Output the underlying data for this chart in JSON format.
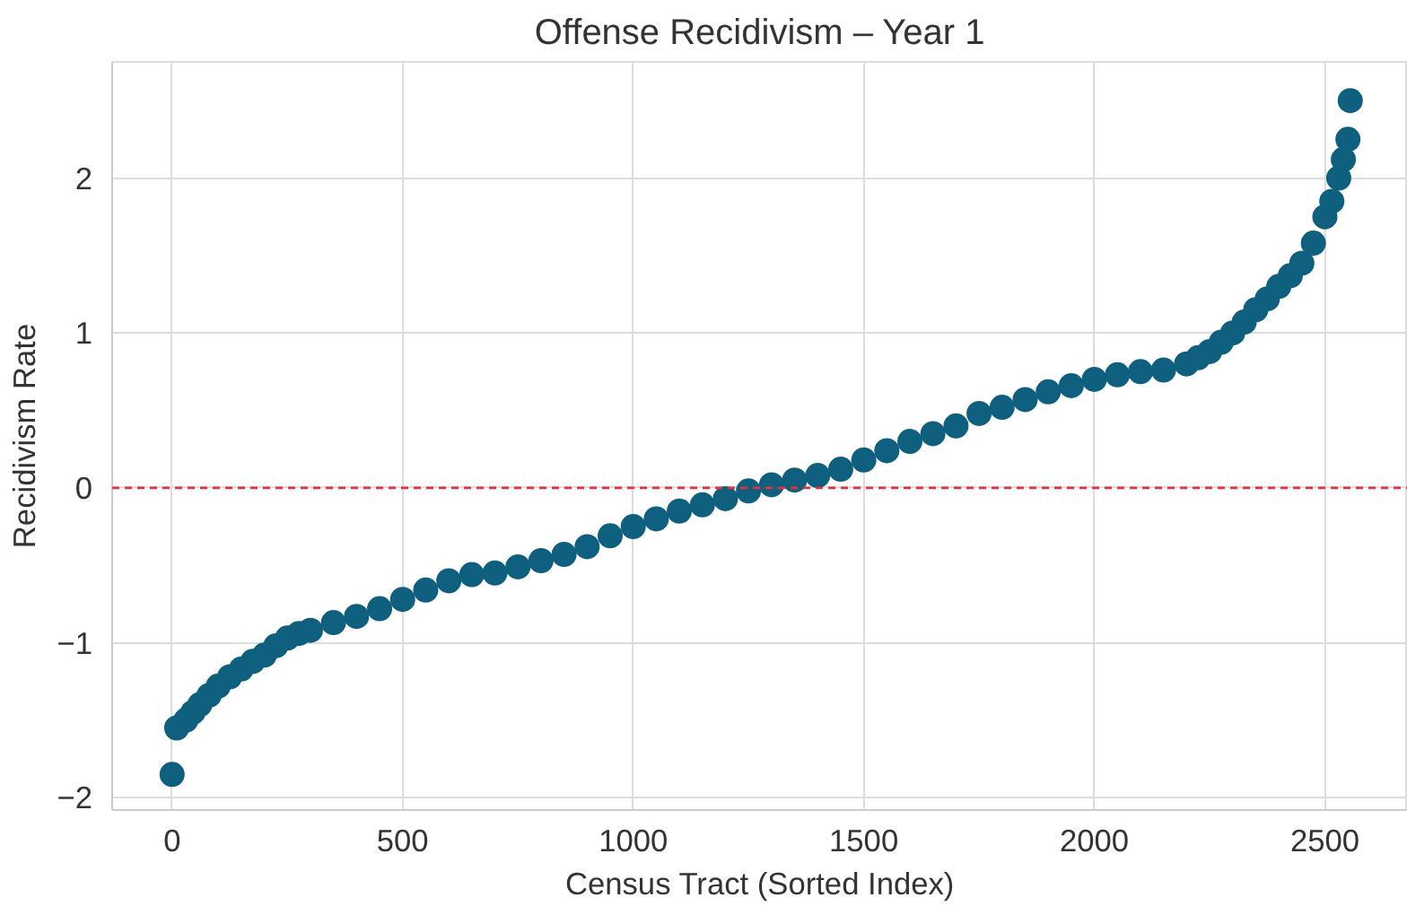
{
  "chart_data": {
    "type": "scatter",
    "title": "Offense Recidivism – Year 1",
    "xlabel": "Census Tract (Sorted Index)",
    "ylabel": "Recidivism Rate",
    "xlim": [
      -130,
      2680
    ],
    "ylim": [
      -2.08,
      2.75
    ],
    "xticks": [
      0,
      500,
      1000,
      1500,
      2000,
      2500
    ],
    "yticks": [
      -2,
      -1,
      0,
      1,
      2
    ],
    "grid": true,
    "marker": "circle",
    "series": [
      {
        "color": "#0f5f7f",
        "x": [
          0,
          10,
          30,
          45,
          60,
          80,
          100,
          125,
          150,
          175,
          200,
          225,
          250,
          275,
          300,
          350,
          400,
          450,
          500,
          550,
          600,
          650,
          700,
          750,
          800,
          850,
          900,
          950,
          1000,
          1050,
          1100,
          1150,
          1200,
          1250,
          1300,
          1350,
          1400,
          1450,
          1500,
          1550,
          1600,
          1650,
          1700,
          1750,
          1800,
          1850,
          1900,
          1950,
          2000,
          2050,
          2100,
          2150,
          2200,
          2225,
          2250,
          2275,
          2300,
          2325,
          2350,
          2375,
          2400,
          2425,
          2450,
          2475,
          2500,
          2515,
          2530,
          2540,
          2550,
          2555
        ],
        "values": [
          -1.85,
          -1.55,
          -1.5,
          -1.45,
          -1.4,
          -1.34,
          -1.28,
          -1.22,
          -1.17,
          -1.12,
          -1.08,
          -1.02,
          -0.97,
          -0.94,
          -0.92,
          -0.87,
          -0.83,
          -0.78,
          -0.72,
          -0.66,
          -0.6,
          -0.56,
          -0.55,
          -0.51,
          -0.47,
          -0.43,
          -0.38,
          -0.31,
          -0.25,
          -0.2,
          -0.15,
          -0.11,
          -0.07,
          -0.02,
          0.02,
          0.05,
          0.08,
          0.12,
          0.18,
          0.24,
          0.3,
          0.35,
          0.4,
          0.48,
          0.52,
          0.57,
          0.62,
          0.66,
          0.7,
          0.73,
          0.75,
          0.76,
          0.8,
          0.84,
          0.88,
          0.94,
          1.0,
          1.07,
          1.15,
          1.22,
          1.3,
          1.37,
          1.45,
          1.58,
          1.75,
          1.85,
          2.0,
          2.12,
          2.25,
          2.5
        ]
      }
    ],
    "ref_lines": [
      {
        "axis": "y",
        "value": 0,
        "color": "#e8303a",
        "line_style": "dashed"
      }
    ]
  }
}
